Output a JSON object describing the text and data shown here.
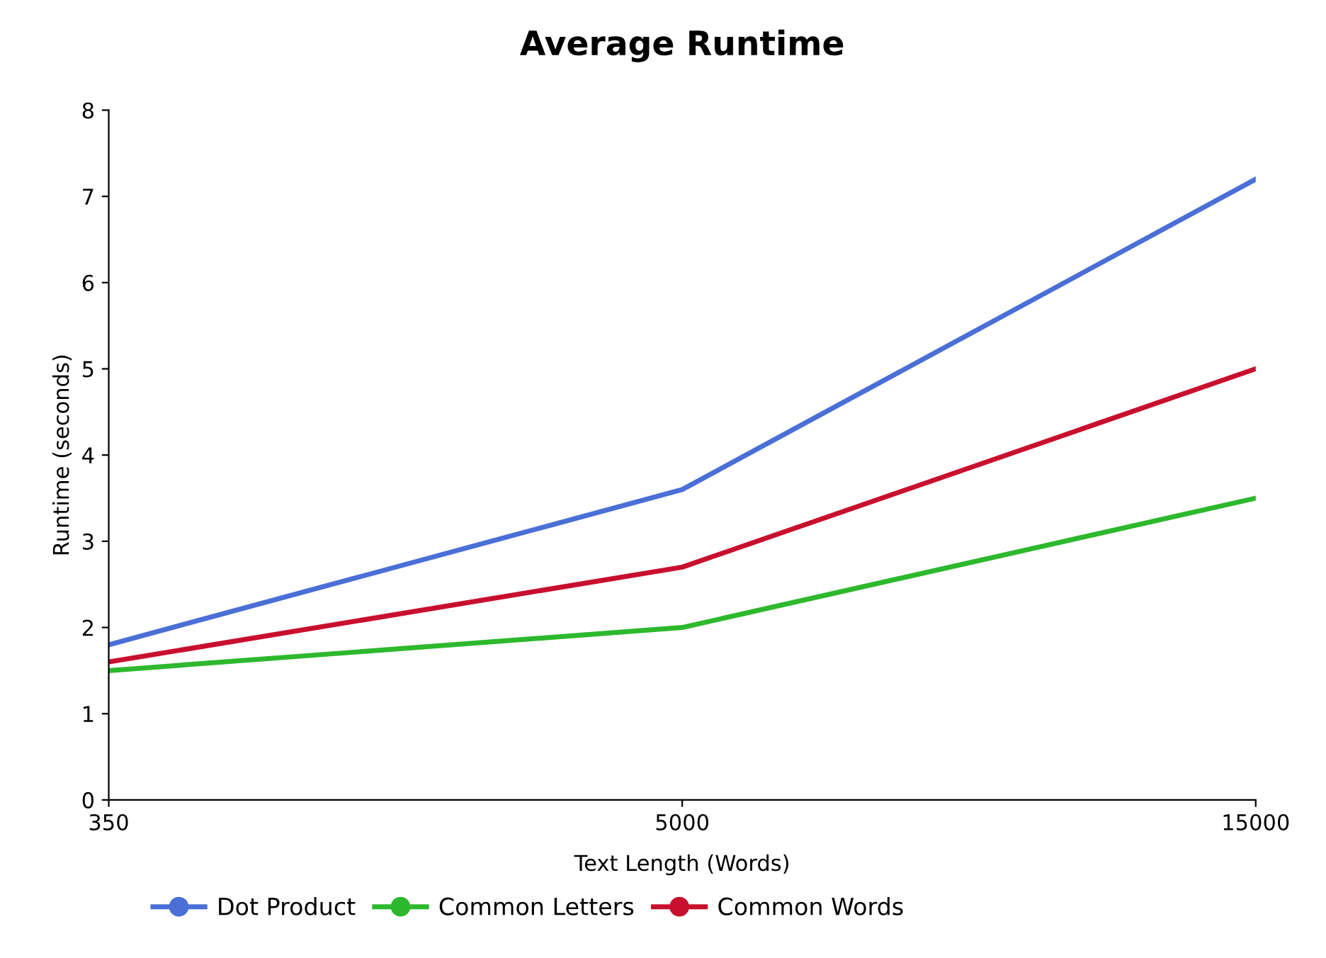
{
  "chart_data": {
    "type": "line",
    "title": "Average Runtime",
    "xlabel": "Text Length (Words)",
    "ylabel": "Runtime (seconds)",
    "categories": [
      "350",
      "5000",
      "15000"
    ],
    "series": [
      {
        "name": "Dot Product",
        "color": "#4a6fd6",
        "values": [
          1.8,
          3.6,
          7.2
        ]
      },
      {
        "name": "Common Letters",
        "color": "#2db82d",
        "values": [
          1.5,
          2.0,
          3.5
        ]
      },
      {
        "name": "Common Words",
        "color": "#c8102e",
        "values": [
          1.6,
          2.7,
          5.0
        ]
      }
    ],
    "ylim": [
      0,
      8
    ],
    "yticks": [
      0,
      1,
      2,
      3,
      4,
      5,
      6,
      7,
      8
    ],
    "grid": false,
    "legend": "bottom",
    "marker": "none",
    "line_style": "solid"
  }
}
